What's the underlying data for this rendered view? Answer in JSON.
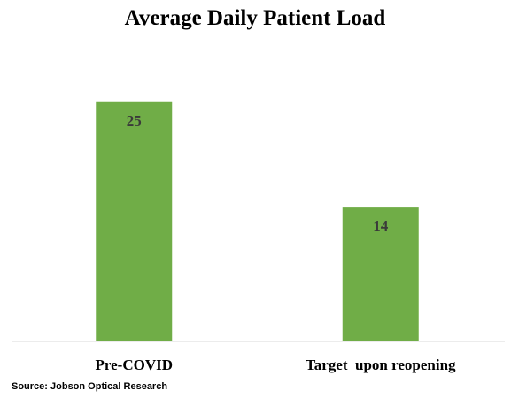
{
  "chart_data": {
    "type": "bar",
    "title": "Average Daily Patient Load",
    "categories": [
      "Pre-COVID",
      "Target  upon reopening"
    ],
    "values": [
      25,
      14
    ],
    "data_labels": [
      "25",
      "14"
    ],
    "xlabel": "",
    "ylabel": "",
    "ylim": [
      0,
      30
    ],
    "grid": false,
    "bar_color": "#70ad47",
    "axis_color": "#d9d9d9"
  },
  "source_note": "Source: Jobson Optical Research"
}
